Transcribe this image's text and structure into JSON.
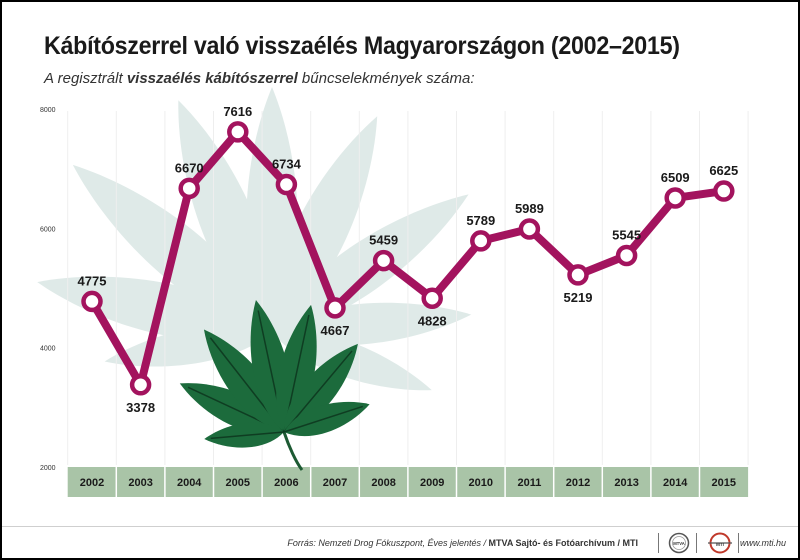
{
  "title": "Kábítószerrel való visszaélés Magyarországon (2002–2015)",
  "subtitle": {
    "pre": "A regisztrált ",
    "bold": "visszaélés kábítószerrel",
    "post": " bűncselekmények száma:"
  },
  "chart_data": {
    "type": "line",
    "categories": [
      "2002",
      "2003",
      "2004",
      "2005",
      "2006",
      "2007",
      "2008",
      "2009",
      "2010",
      "2011",
      "2012",
      "2013",
      "2014",
      "2015"
    ],
    "values": [
      4775,
      3378,
      6670,
      7616,
      6734,
      4667,
      5459,
      4828,
      5789,
      5989,
      5219,
      5545,
      6509,
      6625
    ],
    "label_position": [
      "above",
      "below",
      "above",
      "above",
      "above",
      "below",
      "above",
      "below",
      "above",
      "above",
      "below",
      "above",
      "above",
      "above"
    ],
    "yticks": [
      "8000",
      "6000",
      "4000",
      "2000"
    ],
    "ylim": [
      2000,
      8000
    ],
    "grid": "vertical",
    "line_color": "#a3135e",
    "marker_fill": "#ffffff"
  },
  "footer": {
    "source_italic": "Forrás: Nemzeti Drog Fókuszpont, Éves jelentés / ",
    "source_bold": "MTVA Sajtó- és Fotóarchívum / MTI",
    "logo_mtva": "MTVA",
    "logo_mti": "MTI",
    "website": "www.mti.hu"
  },
  "colors": {
    "axis_band": "#a9c4a7",
    "leaf_faint": "#dfeae8",
    "leaf_dark": "#1c6b3c"
  }
}
